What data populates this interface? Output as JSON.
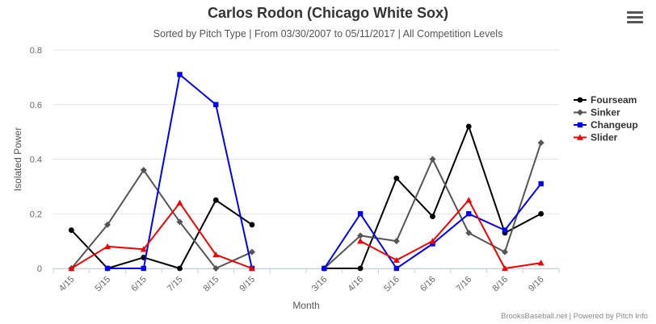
{
  "header": {
    "title": "Carlos Rodon (Chicago White Sox)",
    "subtitle": "Sorted by Pitch Type | From 03/30/2007 to 05/11/2017 | All Competition Levels",
    "credits": "BrooksBaseball.net | Powered by Pitch Info"
  },
  "icons": {
    "menu": "hamburger-menu-icon"
  },
  "chart_data": {
    "type": "line",
    "title": "Carlos Rodon (Chicago White Sox)",
    "subtitle": "Sorted by Pitch Type | From 03/30/2007 to 05/11/2017 | All Competition Levels",
    "xlabel": "Month",
    "ylabel": "Isolated Power",
    "ylim": [
      0,
      0.8
    ],
    "yticks": [
      0,
      0.2,
      0.4,
      0.6,
      0.8
    ],
    "ytick_labels": [
      "0",
      "0.2",
      "0.4",
      "0.6",
      "0.8"
    ],
    "categories": [
      "4/15",
      "5/15",
      "6/15",
      "7/15",
      "8/15",
      "9/15",
      "",
      "3/16",
      "4/16",
      "5/16",
      "6/16",
      "7/16",
      "8/16",
      "9/16"
    ],
    "grid": "horizontal",
    "legend_position": "right",
    "series": [
      {
        "name": "Fourseam",
        "color": "#000000",
        "marker": "circle",
        "values": [
          0.14,
          0.0,
          0.04,
          0.0,
          0.25,
          0.16,
          null,
          0.0,
          0.0,
          0.33,
          0.19,
          0.52,
          0.13,
          0.2
        ]
      },
      {
        "name": "Sinker",
        "color": "#555555",
        "marker": "diamond",
        "values": [
          0.0,
          0.16,
          0.36,
          0.17,
          0.0,
          0.06,
          null,
          0.0,
          0.12,
          0.1,
          0.4,
          0.13,
          0.06,
          0.46
        ]
      },
      {
        "name": "Changeup",
        "color": "#0000ee",
        "marker": "square",
        "values": [
          null,
          0.0,
          0.0,
          0.71,
          0.6,
          0.0,
          null,
          0.0,
          0.2,
          0.0,
          0.09,
          0.2,
          0.14,
          0.31
        ]
      },
      {
        "name": "Slider",
        "color": "#ee0000",
        "marker": "triangle",
        "values": [
          0.0,
          0.08,
          0.07,
          0.24,
          0.05,
          0.0,
          null,
          null,
          0.1,
          0.03,
          0.1,
          0.25,
          0.0,
          0.02
        ]
      }
    ]
  }
}
